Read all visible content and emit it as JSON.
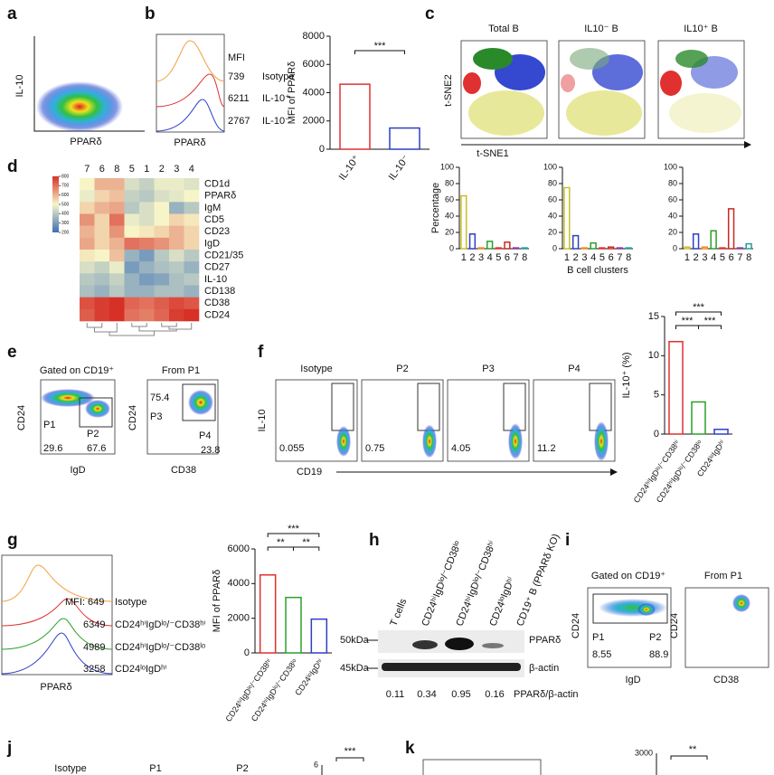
{
  "panels": {
    "a": {
      "letter": "a",
      "ylabel": "IL-10",
      "xlabel": "PPARδ"
    },
    "b": {
      "letter": "b",
      "mfi_header": "MFI",
      "mfi": [
        "739",
        "6211",
        "2767"
      ],
      "rows": [
        "Isotype",
        "IL-10⁺",
        "IL-10⁻"
      ],
      "xlabel": "PPARδ"
    },
    "c": {
      "letter": "c",
      "titles": [
        "Total B",
        "IL10⁻ B",
        "IL10⁺ B"
      ],
      "ylabel": "t-SNE2",
      "xlabel": "t-SNE1"
    },
    "d": {
      "letter": "d"
    },
    "e": {
      "letter": "e",
      "plots": [
        {
          "title": "Gated on CD19⁺",
          "ylabel": "CD24",
          "xlabel": "IgD",
          "gates": [
            "P1",
            "P2"
          ],
          "numbers": [
            "29.6",
            "67.6"
          ]
        },
        {
          "title": "From P1",
          "ylabel": "CD24",
          "xlabel": "CD38",
          "gates": [
            "P3",
            "P4"
          ],
          "numbers": [
            "75.4",
            "23.8"
          ]
        }
      ]
    },
    "f": {
      "letter": "f",
      "titles": [
        "Isotype",
        "P2",
        "P3",
        "P4"
      ],
      "numbers": [
        "0.055",
        "0.75",
        "4.05",
        "11.2"
      ],
      "ylabel": "IL-10",
      "xlabel": "CD19"
    },
    "g": {
      "letter": "g",
      "mfi": [
        "MFI: 649",
        "6349",
        "4989",
        "3258"
      ],
      "rows": [
        "Isotype",
        "CD24ʰⁱIgDˡᵒ/⁻CD38ʰⁱ",
        "CD24ʰⁱIgDˡᵒ/⁻CD38ˡᵒ",
        "CD24ˡᵒIgDʰⁱ"
      ],
      "xlabel": "PPARδ"
    },
    "h": {
      "letter": "h",
      "lanes": [
        "T cells",
        "CD24ʰⁱIgDˡᵒ/⁻CD38ˡᵒ",
        "CD24ʰⁱIgDˡᵒ/⁻CD38ʰⁱ",
        "CD24ˡᵒIgDʰⁱ",
        "CD19⁺ B (PPARδ KO)"
      ],
      "markers": [
        "50kDa",
        "45kDa"
      ],
      "proteins": [
        "PPARδ",
        "β-actin"
      ],
      "ratios": [
        "0.11",
        "0.34",
        "0.95",
        "0.16"
      ],
      "ratio_label": "PPARδ/β-actin"
    },
    "i": {
      "letter": "i",
      "plots": [
        {
          "title": "Gated on CD19⁺",
          "ylabel": "CD24",
          "xlabel": "IgD",
          "gates": [
            "P1",
            "P2"
          ],
          "numbers": [
            "8.55",
            "88.9"
          ]
        },
        {
          "title": "From P1",
          "ylabel": "CD24",
          "xlabel": "CD38"
        }
      ]
    },
    "j": {
      "letter": "j",
      "titles": [
        "Isotype",
        "P1",
        "P2"
      ],
      "axis_tick": "6",
      "significance": "***"
    },
    "k": {
      "letter": "k",
      "axis_tick": "3000",
      "significance": "**"
    }
  },
  "chart_data": [
    {
      "type": "bar",
      "categories": [
        "IL-10⁺",
        "IL-10⁻"
      ],
      "values": [
        4600,
        1500
      ],
      "colors": [
        "#e03030",
        "#2d3fc8"
      ],
      "ylim": [
        0,
        8000
      ],
      "yticks": [
        0,
        2000,
        4000,
        6000,
        8000
      ],
      "ylabel": "MFI of PPARδ",
      "significance": [
        "***"
      ]
    },
    {
      "type": "bar",
      "categories": [
        "1",
        "2",
        "3",
        "4",
        "5",
        "6",
        "7",
        "8"
      ],
      "values": [
        65,
        18,
        1,
        9,
        1,
        8,
        1,
        1
      ],
      "colors": [
        "#c8c02a",
        "#2d3fc8",
        "#f08a24",
        "#2aa02a",
        "#e03030",
        "#c8281e",
        "#8a3aa0",
        "#2a9a9a"
      ],
      "ylim": [
        0,
        100
      ],
      "yticks": [
        0,
        20,
        40,
        60,
        80,
        100
      ],
      "ylabel": "Percentage"
    },
    {
      "type": "bar",
      "categories": [
        "1",
        "2",
        "3",
        "4",
        "5",
        "6",
        "7",
        "8"
      ],
      "values": [
        75,
        16,
        1,
        7,
        1,
        2,
        1,
        1
      ],
      "colors": [
        "#c8c02a",
        "#2d3fc8",
        "#f08a24",
        "#2aa02a",
        "#e03030",
        "#c8281e",
        "#8a3aa0",
        "#2a9a9a"
      ],
      "ylim": [
        0,
        100
      ],
      "yticks": [
        0,
        20,
        40,
        60,
        80,
        100
      ],
      "xlabel": "B cell clusters"
    },
    {
      "type": "bar",
      "categories": [
        "1",
        "2",
        "3",
        "4",
        "5",
        "6",
        "7",
        "8"
      ],
      "values": [
        2,
        18,
        2,
        22,
        1,
        49,
        1,
        6
      ],
      "colors": [
        "#c8c02a",
        "#2d3fc8",
        "#f08a24",
        "#2aa02a",
        "#e03030",
        "#c8281e",
        "#8a3aa0",
        "#2a9a9a"
      ],
      "ylim": [
        0,
        100
      ],
      "yticks": [
        0,
        20,
        40,
        60,
        80,
        100
      ]
    },
    {
      "type": "heatmap",
      "columns": [
        "7",
        "6",
        "8",
        "5",
        "1",
        "2",
        "3",
        "4"
      ],
      "rows": [
        "CD1d",
        "PPARδ",
        "IgM",
        "CD5",
        "CD23",
        "IgD",
        "CD21/35",
        "CD27",
        "IL-10",
        "CD138",
        "CD38",
        "CD24"
      ],
      "values": [
        [
          500,
          600,
          600,
          450,
          420,
          480,
          480,
          460
        ],
        [
          480,
          550,
          580,
          420,
          400,
          450,
          470,
          500
        ],
        [
          550,
          600,
          620,
          400,
          450,
          500,
          350,
          400
        ],
        [
          650,
          550,
          700,
          480,
          450,
          500,
          550,
          520
        ],
        [
          600,
          550,
          650,
          500,
          520,
          550,
          600,
          550
        ],
        [
          620,
          550,
          600,
          700,
          680,
          650,
          600,
          550
        ],
        [
          520,
          500,
          580,
          350,
          300,
          400,
          450,
          400
        ],
        [
          450,
          420,
          480,
          300,
          350,
          380,
          400,
          350
        ],
        [
          400,
          380,
          420,
          350,
          300,
          320,
          380,
          400
        ],
        [
          380,
          350,
          400,
          350,
          350,
          380,
          380,
          350
        ],
        [
          750,
          780,
          800,
          720,
          700,
          730,
          760,
          740
        ],
        [
          730,
          780,
          820,
          700,
          680,
          720,
          780,
          800
        ]
      ],
      "zlim": [
        200,
        800
      ],
      "zticks": [
        800,
        700,
        600,
        500,
        400,
        300,
        200
      ],
      "colormap": [
        "#3b6fb6",
        "#f7f5c8",
        "#d73027"
      ]
    },
    {
      "type": "bar",
      "categories": [
        "CD24ʰⁱIgDˡᵒ/⁻CD38ʰⁱ",
        "CD24ʰⁱIgDˡᵒ/⁻CD38ˡᵒ",
        "CD24ˡᵒIgDʰⁱ"
      ],
      "values": [
        11.8,
        4.1,
        0.6
      ],
      "colors": [
        "#e03030",
        "#2aa02a",
        "#2d3fc8"
      ],
      "ylim": [
        0,
        15
      ],
      "yticks": [
        0,
        5,
        10,
        15
      ],
      "ylabel": "IL-10⁺ (%)",
      "significance": [
        "***",
        "***",
        "***"
      ]
    },
    {
      "type": "bar",
      "categories": [
        "CD24ʰⁱIgDˡᵒ/⁻CD38ʰⁱ",
        "CD24ʰⁱIgDˡᵒ/⁻CD38ˡᵒ",
        "CD24ˡᵒIgDʰⁱ"
      ],
      "values": [
        4500,
        3200,
        1950
      ],
      "colors": [
        "#e03030",
        "#2aa02a",
        "#2d3fc8"
      ],
      "ylim": [
        0,
        6000
      ],
      "yticks": [
        0,
        2000,
        4000,
        6000
      ],
      "ylabel": "MFI of PPARδ",
      "significance": [
        "***",
        "**",
        "**"
      ]
    }
  ]
}
